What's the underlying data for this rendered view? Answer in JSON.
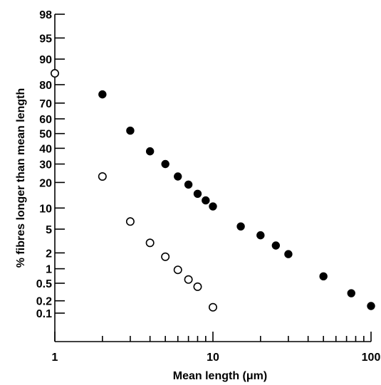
{
  "chart_data": {
    "type": "scatter",
    "xlabel": "Mean length (μm)",
    "ylabel": "% fibres longer than mean length",
    "x_scale": "log",
    "y_scale": "probability",
    "xlim": [
      1,
      100
    ],
    "ylim": [
      0.01,
      98
    ],
    "grid": false,
    "x_ticks": [
      {
        "value": 1,
        "label": "1"
      },
      {
        "value": 10,
        "label": "10"
      },
      {
        "value": 100,
        "label": "100"
      }
    ],
    "x_minor_ticks": [
      2,
      3,
      4,
      5,
      6,
      7,
      8,
      9,
      20,
      30,
      40,
      50,
      60,
      70,
      80,
      90
    ],
    "y_ticks": [
      {
        "value": 98,
        "label": "98"
      },
      {
        "value": 95,
        "label": "95"
      },
      {
        "value": 90,
        "label": "90"
      },
      {
        "value": 80,
        "label": "80"
      },
      {
        "value": 70,
        "label": "70"
      },
      {
        "value": 60,
        "label": "60"
      },
      {
        "value": 50,
        "label": "50"
      },
      {
        "value": 40,
        "label": "40"
      },
      {
        "value": 30,
        "label": "30"
      },
      {
        "value": 20,
        "label": "20"
      },
      {
        "value": 10,
        "label": "10"
      },
      {
        "value": 5,
        "label": "5"
      },
      {
        "value": 2,
        "label": "2"
      },
      {
        "value": 1,
        "label": "1"
      },
      {
        "value": 0.5,
        "label": "0.5"
      },
      {
        "value": 0.2,
        "label": "0.2"
      },
      {
        "value": 0.1,
        "label": "0.1"
      }
    ],
    "series": [
      {
        "marker": "filled-circle",
        "color": "#000000",
        "x": [
          2,
          3,
          4,
          5,
          6,
          7,
          8,
          9,
          10,
          15,
          20,
          25,
          30,
          50,
          75,
          100
        ],
        "y": [
          75,
          52,
          38,
          30,
          23,
          19,
          15,
          12.5,
          10.5,
          5.5,
          4,
          2.7,
          1.9,
          0.7,
          0.3,
          0.15
        ]
      },
      {
        "marker": "open-circle",
        "color": "#000000",
        "x": [
          1,
          2,
          3,
          4,
          5,
          6,
          7,
          8,
          10
        ],
        "y": [
          85,
          23,
          6.5,
          3,
          1.7,
          0.95,
          0.6,
          0.42,
          0.14
        ]
      }
    ]
  }
}
